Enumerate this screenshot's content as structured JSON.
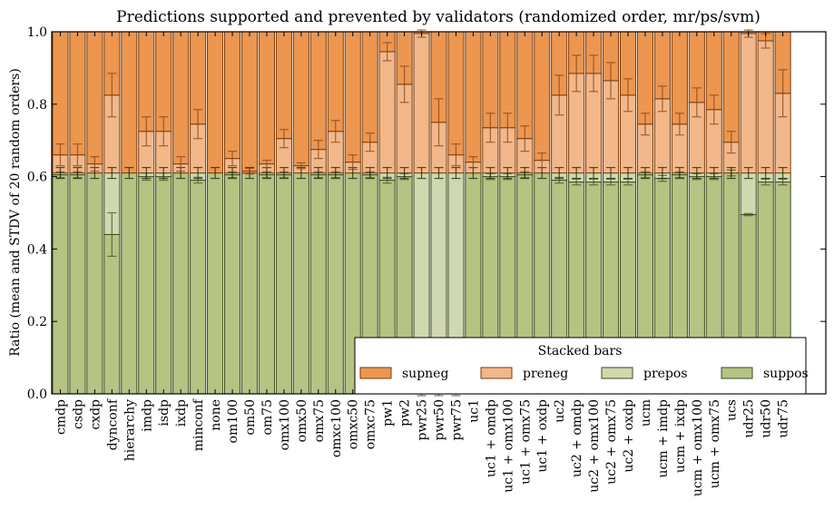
{
  "chart_data": {
    "type": "bar",
    "stacked": true,
    "title": "Predictions supported and prevented by validators (randomized order, mr/ps/svm)",
    "xlabel": "",
    "ylabel": "Ratio (mean and STDV of 20 random orders)",
    "ylim": [
      0,
      1.0
    ],
    "xlim": [
      0,
      45
    ],
    "yticks": [
      "0.0",
      "0.2",
      "0.4",
      "0.6",
      "0.8",
      "1.0"
    ],
    "grid": false,
    "legend": {
      "title": "Stacked bars",
      "placement": "bottom-right",
      "entries": [
        "supneg",
        "preneg",
        "prepos",
        "suppos"
      ]
    },
    "colors": {
      "supneg": "#ec9650",
      "preneg": "#f2b88a",
      "prepos": "#d0d8b0",
      "suppos": "#b5c383",
      "edge_orange": "#7a3a0a",
      "edge_green": "#3c4a1e"
    },
    "categories": [
      "cmdp",
      "csdp",
      "cxdp",
      "dynconf",
      "hierarchy",
      "imdp",
      "isdp",
      "ixdp",
      "minconf",
      "none",
      "om100",
      "om50",
      "om75",
      "omx100",
      "omx50",
      "omx75",
      "omxc100",
      "omxc50",
      "omxc75",
      "pw1",
      "pw2",
      "pwr25",
      "pwr50",
      "pwr75",
      "uc1",
      "uc1 + omdp",
      "uc1 + omx100",
      "uc1 + omx75",
      "uc1 + oxdp",
      "uc2",
      "uc2 + omdp",
      "uc2 + omx100",
      "uc2 + omx75",
      "uc2 + oxdp",
      "ucm",
      "ucm + imdp",
      "ucm + ixdp",
      "ucm + omx100",
      "ucm + omx75",
      "ucs",
      "udr25",
      "udr50",
      "udr75"
    ],
    "cumulative_tops": {
      "suppos": [
        0.605,
        0.605,
        0.61,
        0.44,
        0.61,
        0.6,
        0.6,
        0.61,
        0.59,
        0.61,
        0.605,
        0.61,
        0.605,
        0.605,
        0.61,
        0.605,
        0.605,
        0.61,
        0.605,
        0.59,
        0.6,
        0.005,
        0.005,
        0.005,
        0.61,
        0.6,
        0.6,
        0.605,
        0.61,
        0.59,
        0.585,
        0.585,
        0.585,
        0.585,
        0.605,
        0.595,
        0.605,
        0.6,
        0.6,
        0.61,
        0.495,
        0.585,
        0.585
      ],
      "prepos": [
        0.61,
        0.61,
        0.61,
        0.61,
        0.61,
        0.61,
        0.61,
        0.61,
        0.61,
        0.61,
        0.61,
        0.61,
        0.61,
        0.61,
        0.61,
        0.61,
        0.61,
        0.61,
        0.61,
        0.61,
        0.61,
        0.61,
        0.61,
        0.61,
        0.61,
        0.61,
        0.61,
        0.61,
        0.61,
        0.61,
        0.61,
        0.61,
        0.61,
        0.61,
        0.61,
        0.61,
        0.61,
        0.61,
        0.61,
        0.61,
        0.61,
        0.61,
        0.61
      ],
      "preneg": [
        0.66,
        0.66,
        0.635,
        0.825,
        0.61,
        0.725,
        0.725,
        0.635,
        0.745,
        0.61,
        0.65,
        0.615,
        0.635,
        0.705,
        0.63,
        0.675,
        0.725,
        0.64,
        0.695,
        0.945,
        0.855,
        0.995,
        0.75,
        0.66,
        0.64,
        0.735,
        0.735,
        0.705,
        0.645,
        0.825,
        0.885,
        0.885,
        0.865,
        0.825,
        0.745,
        0.815,
        0.745,
        0.805,
        0.785,
        0.695,
        0.995,
        0.975,
        0.83
      ],
      "supneg": [
        1,
        1,
        1,
        1,
        1,
        1,
        1,
        1,
        1,
        1,
        1,
        1,
        1,
        1,
        1,
        1,
        1,
        1,
        1,
        1,
        1,
        1,
        1,
        1,
        1,
        1,
        1,
        1,
        1,
        1,
        1,
        1,
        1,
        1,
        1,
        1,
        1,
        1,
        1,
        1,
        1,
        1,
        1
      ]
    },
    "stdv": {
      "suppos": [
        0.008,
        0.008,
        0.0,
        0.06,
        0.0,
        0.01,
        0.01,
        0.0,
        0.008,
        0.0,
        0.008,
        0.0,
        0.008,
        0.008,
        0.0,
        0.008,
        0.008,
        0.0,
        0.008,
        0.008,
        0.008,
        0.01,
        0.01,
        0.01,
        0.0,
        0.008,
        0.008,
        0.008,
        0.0,
        0.008,
        0.008,
        0.008,
        0.008,
        0.008,
        0.008,
        0.008,
        0.008,
        0.008,
        0.008,
        0.008,
        0.003,
        0.008,
        0.008
      ],
      "prepos": [
        0.015,
        0.015,
        0.015,
        0.015,
        0.015,
        0.015,
        0.015,
        0.015,
        0.015,
        0.015,
        0.015,
        0.015,
        0.015,
        0.015,
        0.015,
        0.015,
        0.015,
        0.015,
        0.015,
        0.015,
        0.015,
        0.015,
        0.015,
        0.015,
        0.015,
        0.015,
        0.015,
        0.015,
        0.015,
        0.015,
        0.015,
        0.015,
        0.015,
        0.015,
        0.015,
        0.015,
        0.015,
        0.015,
        0.015,
        0.015,
        0.015,
        0.015,
        0.015
      ],
      "preneg": [
        0.03,
        0.03,
        0.02,
        0.06,
        0.0,
        0.04,
        0.04,
        0.02,
        0.04,
        0.0,
        0.02,
        0.008,
        0.01,
        0.025,
        0.008,
        0.025,
        0.03,
        0.02,
        0.025,
        0.025,
        0.05,
        0.01,
        0.065,
        0.03,
        0.015,
        0.04,
        0.04,
        0.035,
        0.02,
        0.055,
        0.05,
        0.05,
        0.05,
        0.045,
        0.03,
        0.035,
        0.03,
        0.04,
        0.04,
        0.03,
        0.01,
        0.02,
        0.065
      ]
    }
  }
}
